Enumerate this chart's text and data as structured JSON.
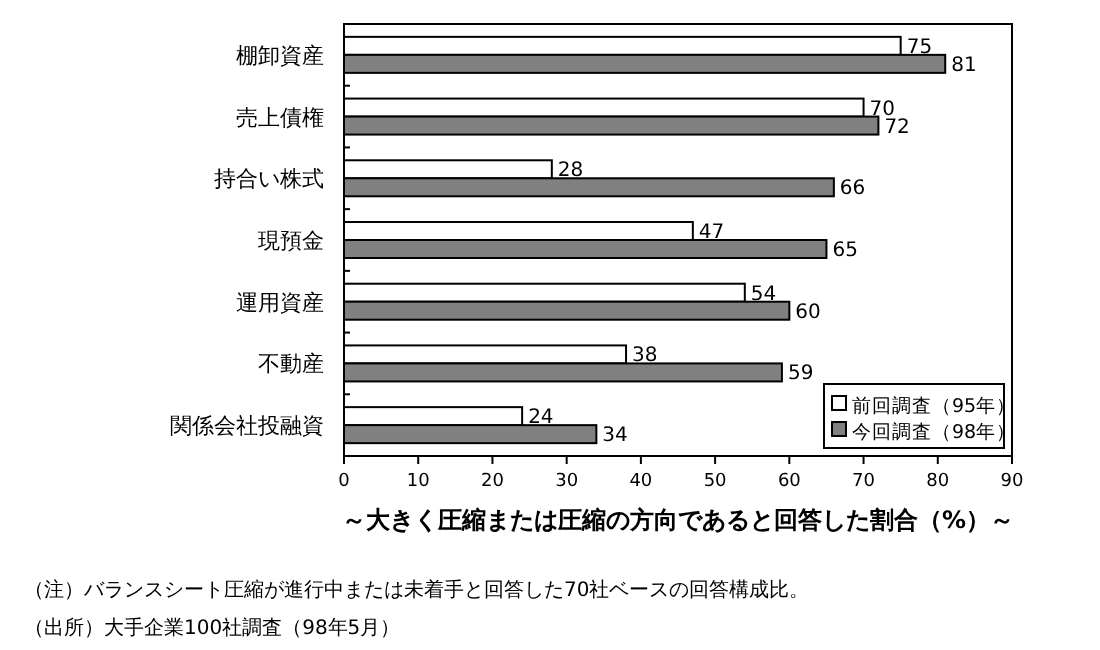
{
  "chart_data": {
    "type": "bar",
    "orientation": "horizontal",
    "xlabel": "～大きく圧縮または圧縮の方向であると回答した割合（%）～",
    "categories": [
      "棚卸資産",
      "売上債権",
      "持合い株式",
      "現預金",
      "運用資産",
      "不動産",
      "関係会社投融資"
    ],
    "series": [
      {
        "name": "前回調査（95年）",
        "color": "#ffffff",
        "values": [
          75,
          70,
          28,
          47,
          54,
          38,
          24
        ]
      },
      {
        "name": "今回調査（98年）",
        "color": "#808080",
        "values": [
          81,
          72,
          66,
          65,
          60,
          59,
          34
        ]
      }
    ],
    "xlim": [
      0,
      90
    ],
    "xticks": [
      0,
      10,
      20,
      30,
      40,
      50,
      60,
      70,
      80,
      90
    ],
    "data_labels": true,
    "legend": "bottom right",
    "annotations": [
      "（注）バランスシート圧縮が進行中または未着手と回答した70社ベースの回答構成比。",
      "（出所）大手企業100社調査（98年5月）"
    ]
  }
}
